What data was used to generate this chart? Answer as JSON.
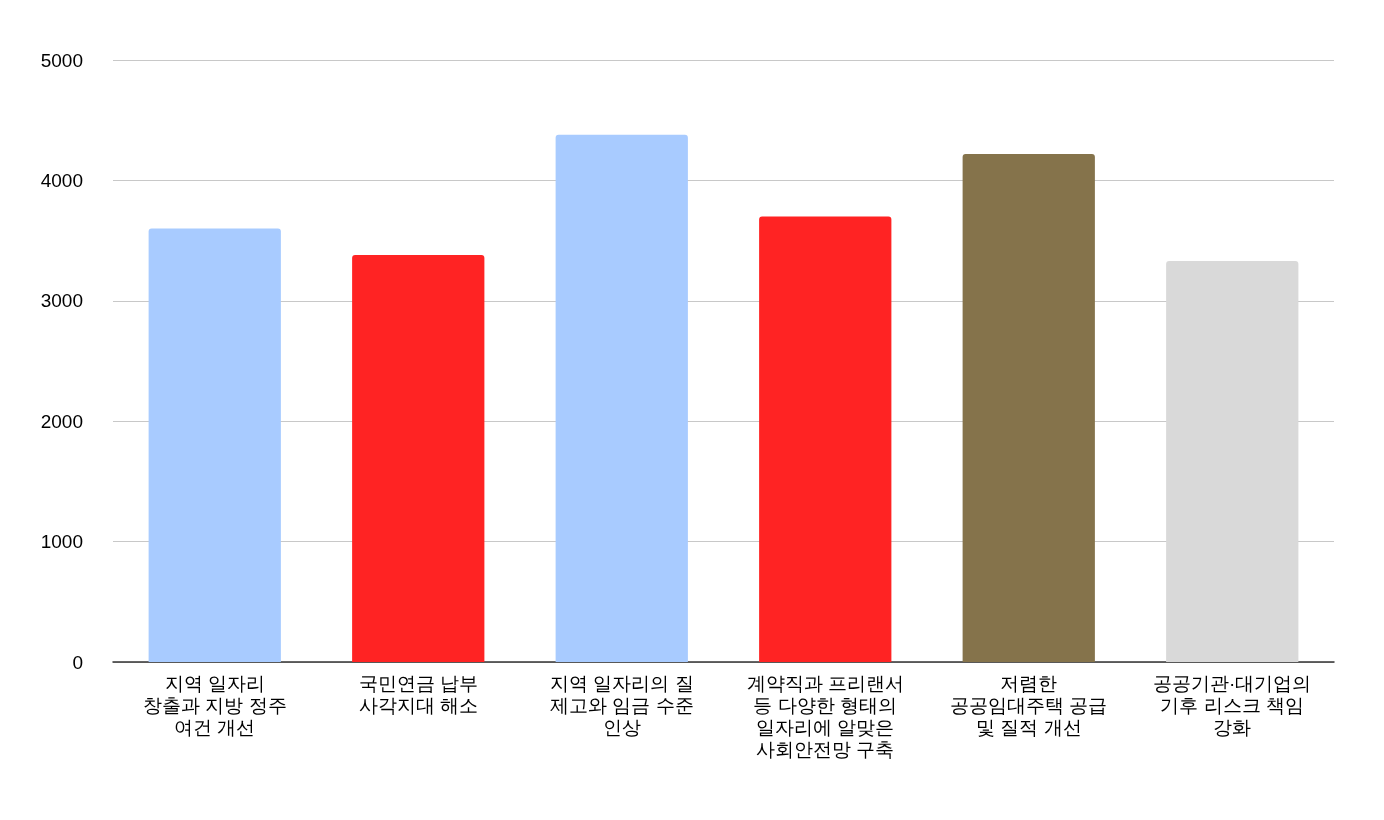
{
  "chart_data": {
    "type": "bar",
    "categories": [
      "지역 일자리\n창출과 지방 정주\n여건 개선",
      "국민연금 납부\n사각지대 해소",
      "지역 일자리의 질\n제고와 임금 수준\n인상",
      "계약직과 프리랜서\n등 다양한 형태의\n일자리에 알맞은\n사회안전망 구축",
      "저렴한\n공공임대주택 공급\n및 질적 개선",
      "공공기관·대기업의\n기후 리스크 책임\n강화"
    ],
    "values": [
      3600,
      3380,
      4380,
      3700,
      4220,
      3330
    ],
    "colors": [
      "#a8cbff",
      "#ff2323",
      "#a8cbff",
      "#ff2323",
      "#85734b",
      "#d9d9d9"
    ],
    "ylim": [
      0,
      5000
    ],
    "yticks": [
      0,
      1000,
      2000,
      3000,
      4000,
      5000
    ],
    "grid": "y"
  }
}
